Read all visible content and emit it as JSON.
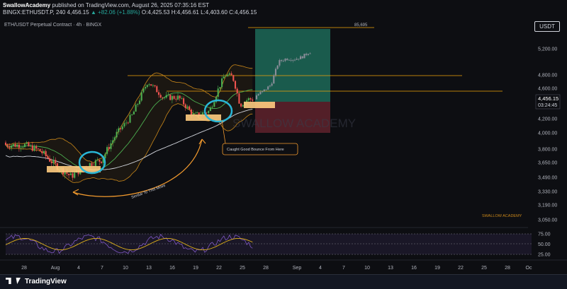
{
  "header": {
    "author": "SwallowAcademy",
    "published_text": "published on TradingView.com, August 26, 2025 07:35:16 EST",
    "symbol_line": "BINGX:ETHUSDT.P, 240",
    "last": "4,456.15",
    "change": "▲ +82.06 (+1.88%)",
    "ohlc": "O:4,425.53 H:4,456.61 L:4,403.60 C:4,456.15"
  },
  "legend": "ETH/USDT Perpetual Contract · 4h · BINGX",
  "currency_button": "USDT",
  "price_label": {
    "price": "4,456.15",
    "countdown": "03:24:45"
  },
  "annotations": {
    "target_level": "85,695",
    "caught_bounce": "Caught Good Bounce From Here",
    "similar_move": "Similar To This Move",
    "watermark": "SWALLOW ACADEMY",
    "watermark_small": "SWALLOW ACADEMY"
  },
  "footer": {
    "brand": "TradingView"
  },
  "colors": {
    "background": "#0d0e12",
    "up_candle": "#4caf50",
    "down_candle": "#ef5350",
    "bollinger": "#c9871a",
    "ema_fast": "#4caf50",
    "ema_slow": "#d1d4dc",
    "highlight_circle": "#29b6d6",
    "zone": "#ffcc80",
    "level_line": "#f0a30a",
    "target_zone": "#1e6f5c",
    "stop_zone": "#6b2530",
    "oscillator": "#e0b21a",
    "oscillator_signal": "#7e57c2"
  },
  "chart_data": {
    "type": "candlestick",
    "title": "ETH/USDT Perpetual Contract · 4h · BINGX",
    "xlabel": "",
    "ylabel": "",
    "x_ticks": [
      "28",
      "Aug",
      "4",
      "7",
      "10",
      "13",
      "16",
      "19",
      "22",
      "25",
      "28",
      "Sep",
      "4",
      "7",
      "10",
      "13",
      "16",
      "19",
      "22",
      "25",
      "28",
      "Oc"
    ],
    "y_ticks": [
      5200,
      4800,
      4600,
      4200,
      4000,
      3800,
      3650,
      3490,
      3330,
      3190,
      3050
    ],
    "y_tick_labels": [
      "5,200.00",
      "4,800.00",
      "4,600.00",
      "4,200.00",
      "4,000.00",
      "3,800.00",
      "3,650.00",
      "3,490.00",
      "3,330.00",
      "3,190.00",
      "3,050.00"
    ],
    "series": [
      {
        "name": "ETHUSDT.P",
        "dates": [
          "Jul 28",
          "Jul 30",
          "Aug 1",
          "Aug 3",
          "Aug 5",
          "Aug 7",
          "Aug 9",
          "Aug 11",
          "Aug 13",
          "Aug 15",
          "Aug 17",
          "Aug 19",
          "Aug 21",
          "Aug 23",
          "Aug 24",
          "Aug 25",
          "Aug 26"
        ],
        "close": [
          3850,
          3780,
          3620,
          3500,
          3620,
          3680,
          4000,
          4250,
          4700,
          4480,
          4480,
          4240,
          4300,
          4800,
          4780,
          4380,
          4456
        ]
      },
      {
        "name": "Projection",
        "dates": [
          "Aug 27",
          "Aug 28",
          "Aug 29",
          "Aug 30",
          "Aug 31",
          "Sep 1",
          "Sep 2",
          "Sep 3"
        ],
        "close": [
          4500,
          4560,
          4650,
          5000,
          5050,
          5040,
          5070,
          5150
        ]
      }
    ],
    "levels": {
      "upper_line": 4800,
      "mid_line": 4600
    },
    "oscillator": {
      "y_ticks": [
        75.0,
        50.0,
        25.0
      ],
      "y_tick_labels": [
        "75.00",
        "50.00",
        "25.00"
      ]
    },
    "grid": false,
    "legend_position": "top-left"
  }
}
